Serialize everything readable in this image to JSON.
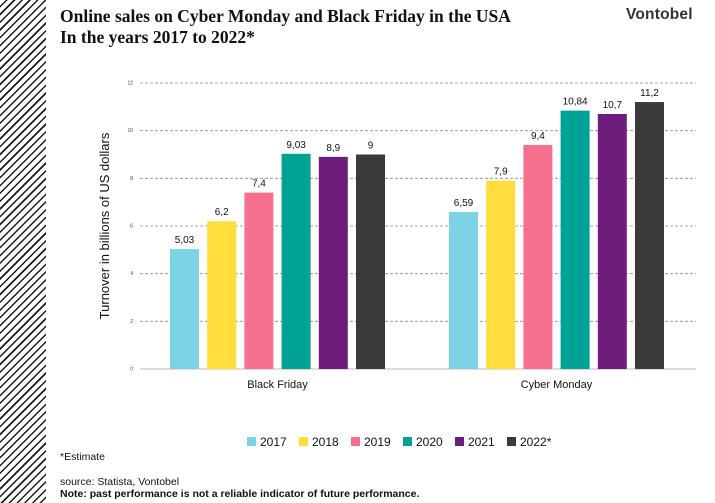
{
  "header": {
    "title_line1": "Online sales on Cyber Monday and Black Friday in the USA",
    "title_line2": "In the years 2017 to 2022*",
    "brand": "Vontobel"
  },
  "footer": {
    "estimate": "*Estimate",
    "source": "source: Statista, Vontobel",
    "note": "Note: past performance is not a reliable indicator of future performance."
  },
  "chart_data": {
    "type": "bar",
    "title": "",
    "xlabel": "",
    "ylabel": "Turnover in billions of US dollars",
    "ylim": [
      0,
      12
    ],
    "yticks": [
      0,
      2,
      4,
      6,
      8,
      10,
      12
    ],
    "ytick_labels": [
      "0",
      "2",
      "4",
      "6",
      "8",
      "10",
      "12"
    ],
    "grid": true,
    "legend_position": "bottom",
    "categories": [
      "Black Friday",
      "Cyber Monday"
    ],
    "series": [
      {
        "name": "2017",
        "color": "#7dd3e6",
        "values": [
          5.03,
          6.59
        ],
        "labels": [
          "5,03",
          "6,59"
        ]
      },
      {
        "name": "2018",
        "color": "#ffdd3c",
        "values": [
          6.2,
          7.9
        ],
        "labels": [
          "6,2",
          "7,9"
        ]
      },
      {
        "name": "2019",
        "color": "#f5708f",
        "values": [
          7.4,
          9.4
        ],
        "labels": [
          "7,4",
          "9,4"
        ]
      },
      {
        "name": "2020",
        "color": "#00a296",
        "values": [
          9.03,
          10.84
        ],
        "labels": [
          "9,03",
          "10,84"
        ]
      },
      {
        "name": "2021",
        "color": "#6f1d7d",
        "values": [
          8.9,
          10.7
        ],
        "labels": [
          "8,9",
          "10,7"
        ]
      },
      {
        "name": "2022*",
        "color": "#3a3a3a",
        "values": [
          9,
          11.2
        ],
        "labels": [
          "9",
          "11,2"
        ]
      }
    ]
  }
}
